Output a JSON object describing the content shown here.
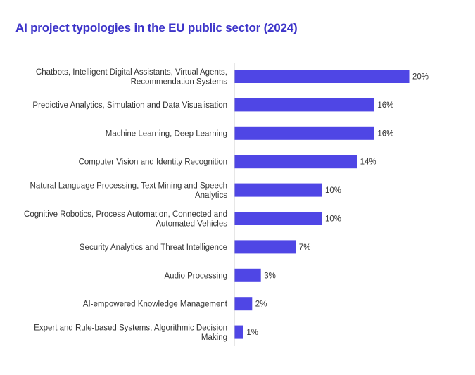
{
  "chart_data": {
    "type": "bar",
    "orientation": "horizontal",
    "title": "AI project typologies in the EU public sector (2024)",
    "bar_color": "#4f46e5",
    "title_color": "#3d34c9",
    "xlim": [
      0,
      20
    ],
    "categories": [
      [
        "Chatbots, Intelligent Digital Assistants, Virtual Agents,",
        "Recommendation Systems"
      ],
      [
        "Predictive Analytics, Simulation and Data Visualisation"
      ],
      [
        "Machine Learning, Deep Learning"
      ],
      [
        "Computer Vision and Identity Recognition"
      ],
      [
        "Natural Language Processing, Text Mining and Speech",
        "Analytics"
      ],
      [
        "Cognitive Robotics, Process Automation, Connected and",
        "Automated Vehicles"
      ],
      [
        "Security Analytics and Threat Intelligence"
      ],
      [
        "Audio Processing"
      ],
      [
        "AI-empowered Knowledge Management"
      ],
      [
        "Expert and Rule-based Systems, Algorithmic Decision",
        "Making"
      ]
    ],
    "values": [
      20,
      16,
      16,
      14,
      10,
      10,
      7,
      3,
      2,
      1
    ],
    "value_labels": [
      "20%",
      "16%",
      "16%",
      "14%",
      "10%",
      "10%",
      "7%",
      "3%",
      "2%",
      "1%"
    ]
  }
}
